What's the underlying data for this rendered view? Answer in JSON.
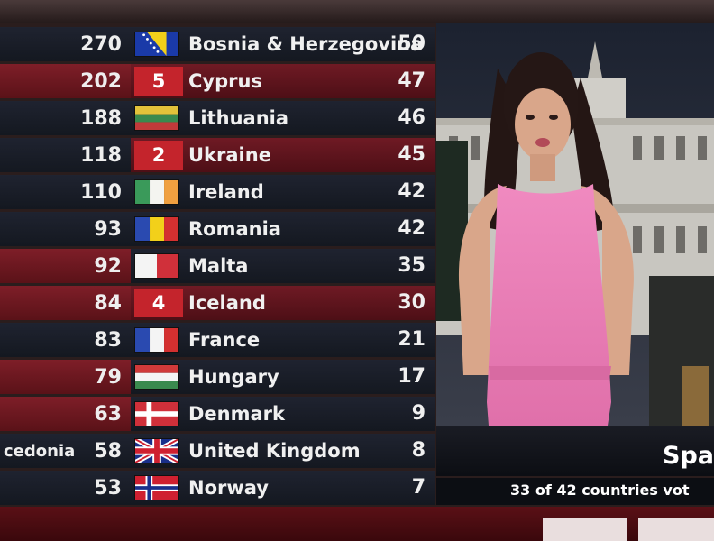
{
  "scoreboard": [
    {
      "left_value": "270",
      "flag": "bosnia-flag",
      "points": "",
      "country": "Bosnia & Herzegovina",
      "total": "50",
      "left_bg": "dark",
      "mid_bg": "dark"
    },
    {
      "left_value": "202",
      "flag": "",
      "points": "5",
      "country": "Cyprus",
      "total": "47",
      "left_bg": "red",
      "mid_bg": "red"
    },
    {
      "left_value": "188",
      "flag": "lithuania-flag",
      "points": "",
      "country": "Lithuania",
      "total": "46",
      "left_bg": "dark",
      "mid_bg": "dark"
    },
    {
      "left_value": "118",
      "flag": "",
      "points": "2",
      "country": "Ukraine",
      "total": "45",
      "left_bg": "dark",
      "mid_bg": "red"
    },
    {
      "left_value": "110",
      "flag": "ireland-flag",
      "points": "",
      "country": "Ireland",
      "total": "42",
      "left_bg": "dark",
      "mid_bg": "dark"
    },
    {
      "left_value": "93",
      "flag": "romania-flag",
      "points": "",
      "country": "Romania",
      "total": "42",
      "left_bg": "dark",
      "mid_bg": "dark"
    },
    {
      "left_value": "92",
      "flag": "malta-flag",
      "points": "",
      "country": "Malta",
      "total": "35",
      "left_bg": "red",
      "mid_bg": "dark"
    },
    {
      "left_value": "84",
      "flag": "",
      "points": "4",
      "country": "Iceland",
      "total": "30",
      "left_bg": "red",
      "mid_bg": "red"
    },
    {
      "left_value": "83",
      "flag": "france-flag",
      "points": "",
      "country": "France",
      "total": "21",
      "left_bg": "dark",
      "mid_bg": "dark"
    },
    {
      "left_value": "79",
      "flag": "hungary-flag",
      "points": "",
      "country": "Hungary",
      "total": "17",
      "left_bg": "red",
      "mid_bg": "dark"
    },
    {
      "left_value": "63",
      "flag": "denmark-flag",
      "points": "",
      "country": "Denmark",
      "total": "9",
      "left_bg": "red",
      "mid_bg": "dark"
    },
    {
      "left_value": "58",
      "left_name": "cedonia",
      "flag": "uk-flag",
      "points": "",
      "country": "United Kingdom",
      "total": "8",
      "left_bg": "dark",
      "mid_bg": "dark"
    },
    {
      "left_value": "53",
      "flag": "norway-flag",
      "points": "",
      "country": "Norway",
      "total": "7",
      "left_bg": "dark",
      "mid_bg": "dark"
    }
  ],
  "broadcast": {
    "location_label": "Spa",
    "progress_text": "33 of 42 countries vot"
  },
  "colors": {
    "points_box": "#c4242c",
    "row_red": "#6f1a24",
    "row_dark": "#1a1e28"
  }
}
